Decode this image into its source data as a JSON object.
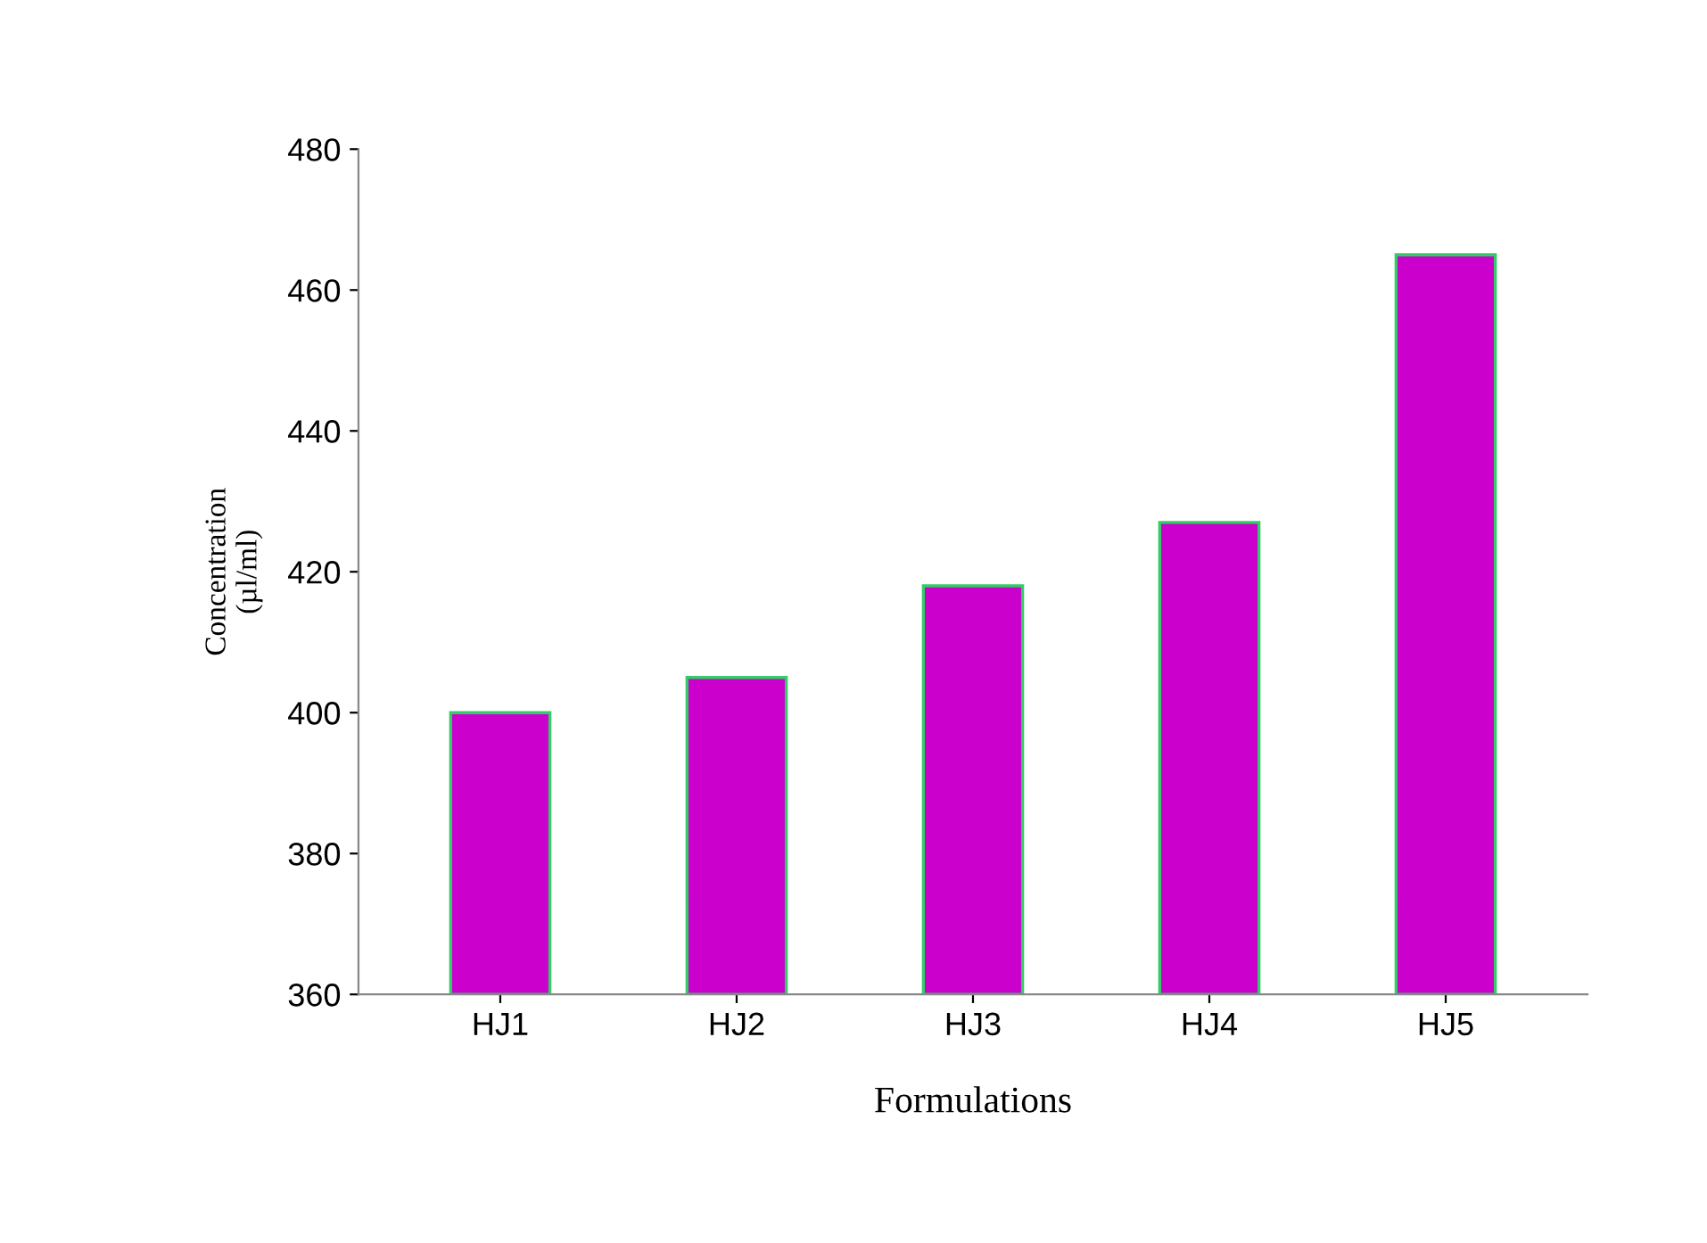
{
  "chart_data": {
    "type": "bar",
    "xlabel": "Formulations",
    "ylabel": "Concentration\n(µl/ml)",
    "categories": [
      "HJ1",
      "HJ2",
      "HJ3",
      "HJ4",
      "HJ5"
    ],
    "values": [
      400,
      405,
      418,
      427,
      465
    ],
    "color": "#cc00cc",
    "ylim": [
      360,
      480
    ],
    "yticks": [
      360,
      380,
      400,
      420,
      440,
      460,
      480
    ],
    "grid": false,
    "legend": false
  }
}
